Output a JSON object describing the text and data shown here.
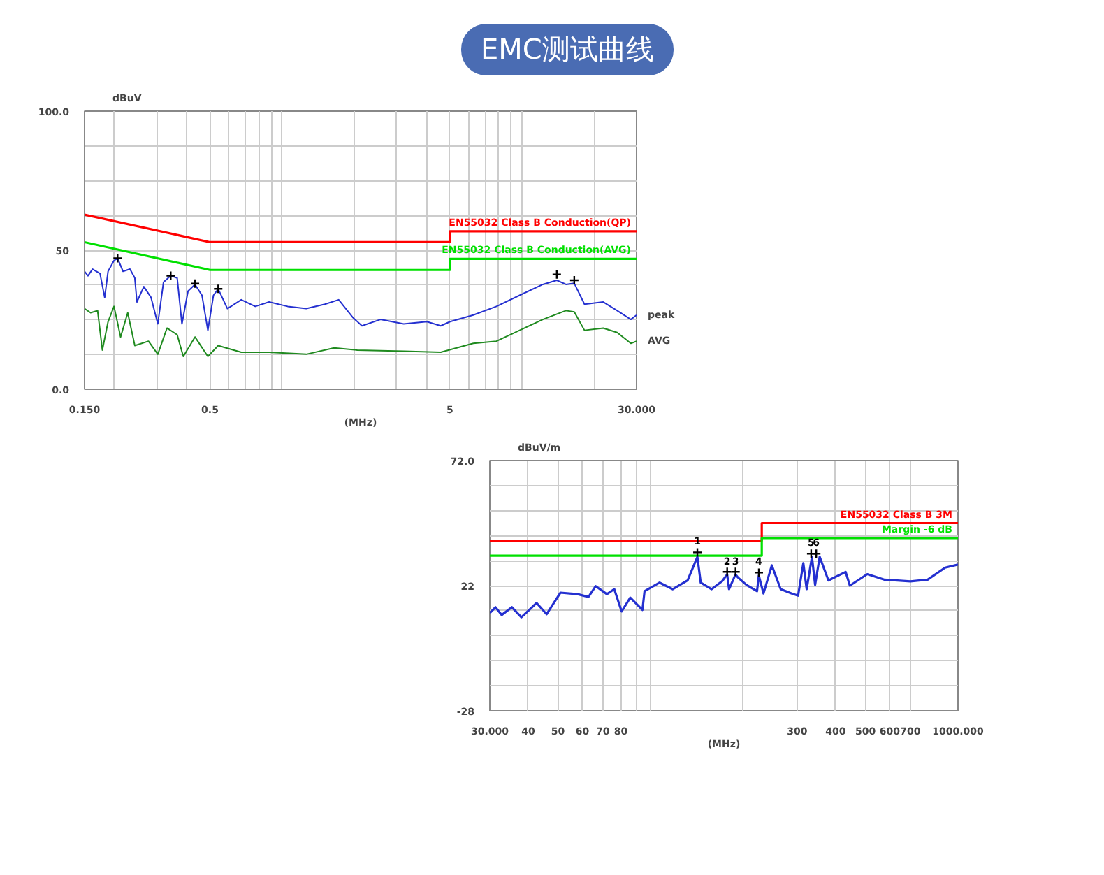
{
  "chart_data": [
    {
      "type": "line",
      "title": "EMC测试曲线",
      "ylabel": "dBuV",
      "xlabel": "(MHz)",
      "log": "x",
      "grid": true,
      "xlim": [
        0.15,
        30
      ],
      "ylim": [
        0,
        100
      ],
      "xticks": [
        {
          "value": 0.15,
          "label": "0.150"
        },
        {
          "value": 0.2,
          "label": null
        },
        {
          "value": 0.3,
          "label": null
        },
        {
          "value": 0.4,
          "label": null
        },
        0.5,
        {
          "value": 0.6,
          "label": null
        },
        {
          "value": 0.7,
          "label": null
        },
        {
          "value": 0.8,
          "label": null
        },
        {
          "value": 0.9,
          "label": null
        },
        {
          "value": 1,
          "label": null
        },
        {
          "value": 2,
          "label": null
        },
        {
          "value": 3,
          "label": null
        },
        {
          "value": 4,
          "label": null
        },
        5,
        {
          "value": 6,
          "label": null
        },
        {
          "value": 7,
          "label": null
        },
        {
          "value": 8,
          "label": null
        },
        {
          "value": 9,
          "label": null
        },
        {
          "value": 10,
          "label": null
        },
        {
          "value": 20,
          "label": null
        },
        {
          "value": 30,
          "label": "30.000"
        }
      ],
      "yticks": [
        {
          "value": 0,
          "label": "0.0"
        },
        {
          "value": 12.5,
          "label": null
        },
        {
          "value": 25,
          "label": null
        },
        {
          "value": 37.5,
          "label": null
        },
        50,
        {
          "value": 62.5,
          "label": null
        },
        {
          "value": 75,
          "label": null
        },
        {
          "value": 87.5,
          "label": null
        },
        {
          "value": 100,
          "label": "100.0"
        }
      ],
      "series": [
        {
          "color": "#ff0000",
          "x": [
            0.15,
            0.5,
            5,
            5,
            30
          ],
          "values": [
            62.8,
            52.9,
            52.9,
            56.8,
            56.8
          ]
        },
        {
          "color": "#00e000",
          "x": [
            0.15,
            0.5,
            5,
            5,
            30
          ],
          "values": [
            52.9,
            42.9,
            42.9,
            46.9,
            46.9
          ]
        },
        {
          "name": "peak",
          "color": "#2430d0",
          "x": [
            0.15,
            0.155,
            0.162,
            0.174,
            0.182,
            0.188,
            0.199,
            0.206,
            0.217,
            0.232,
            0.243,
            0.248,
            0.265,
            0.284,
            0.303,
            0.32,
            0.343,
            0.365,
            0.382,
            0.405,
            0.433,
            0.463,
            0.49,
            0.517,
            0.541,
            0.591,
            0.675,
            0.772,
            0.882,
            1.054,
            1.26,
            1.506,
            1.72,
            1.966,
            2.15,
            2.568,
            3.209,
            4.009,
            4.58,
            5.009,
            6.26,
            7.82,
            9.77,
            12.2,
            13.95,
            15.24,
            16.5,
            18.2,
            21.8,
            24.9,
            28.4,
            30
          ],
          "values": [
            42.4,
            40.8,
            43.2,
            41.6,
            33.0,
            42.4,
            46.3,
            47.1,
            42.4,
            43.2,
            40.0,
            31.4,
            36.9,
            33.0,
            23.5,
            38.5,
            40.8,
            40.0,
            23.5,
            35.3,
            37.7,
            33.8,
            21.2,
            33.8,
            36.1,
            29.0,
            32.2,
            29.8,
            31.4,
            29.8,
            29.0,
            30.6,
            32.2,
            25.9,
            22.8,
            25.1,
            23.5,
            24.3,
            22.8,
            24.3,
            26.7,
            29.8,
            33.8,
            37.7,
            39.2,
            37.7,
            38.1,
            30.6,
            31.4,
            28.3,
            25.1,
            26.7
          ]
        },
        {
          "name": "AVG",
          "color": "#1f8a1f",
          "x": [
            0.15,
            0.159,
            0.17,
            0.178,
            0.188,
            0.199,
            0.212,
            0.227,
            0.243,
            0.277,
            0.303,
            0.331,
            0.365,
            0.387,
            0.433,
            0.49,
            0.541,
            0.675,
            0.882,
            1.26,
            1.646,
            2.056,
            3.209,
            4.58,
            6.26,
            7.82,
            9.77,
            12.2,
            15.24,
            16.5,
            18.2,
            21.8,
            24.9,
            28.4,
            30
          ],
          "values": [
            29.0,
            27.5,
            28.3,
            14.1,
            24.3,
            29.8,
            18.8,
            27.5,
            15.7,
            17.3,
            12.6,
            22.0,
            19.6,
            11.8,
            18.8,
            11.8,
            15.7,
            13.3,
            13.3,
            12.6,
            14.9,
            14.1,
            13.7,
            13.3,
            16.5,
            17.3,
            21.2,
            25.1,
            28.3,
            27.8,
            21.2,
            22.0,
            20.4,
            16.5,
            17.3
          ]
        },
        {
          "type": "scatter",
          "marker": "cross",
          "color": "#000000",
          "x": [
            0.206,
            0.343,
            0.433,
            0.541,
            13.95,
            16.5
          ],
          "values": [
            47.1,
            40.8,
            38.0,
            36.1,
            41.3,
            39.2
          ]
        }
      ],
      "annotations": [
        "EN55032 Class B Conduction(QP)",
        "EN55032 Class B Conduction(AVG)"
      ]
    },
    {
      "type": "line",
      "ylabel": "dBuV/m",
      "xlabel": "(MHz)",
      "log": "x",
      "grid": true,
      "xlim": [
        30,
        1000
      ],
      "ylim": [
        -28,
        72
      ],
      "xticks": [
        {
          "value": 30,
          "label": "30.000"
        },
        40,
        50,
        60,
        70,
        80,
        {
          "value": 90,
          "label": null
        },
        {
          "value": 100,
          "label": null
        },
        {
          "value": 200,
          "label": null
        },
        300,
        400,
        500,
        600,
        700,
        {
          "value": 1000,
          "label": "1000.000"
        }
      ],
      "yticks": [
        {
          "value": -28,
          "label": "-28"
        },
        {
          "value": -18,
          "label": null
        },
        {
          "value": -8,
          "label": null
        },
        {
          "value": 2,
          "label": null
        },
        {
          "value": 12,
          "label": null
        },
        22,
        {
          "value": 32,
          "label": null
        },
        {
          "value": 42,
          "label": null
        },
        {
          "value": 52,
          "label": null
        },
        {
          "value": 62,
          "label": null
        },
        {
          "value": 72,
          "label": "72.0"
        }
      ],
      "series": [
        {
          "color": "#ff0000",
          "x": [
            30,
            230,
            230,
            1000
          ],
          "values": [
            40,
            40,
            47,
            47
          ]
        },
        {
          "color": "#00e000",
          "x": [
            30,
            230,
            230,
            1000
          ],
          "values": [
            34,
            34,
            41,
            41
          ]
        },
        {
          "color": "#2430d0",
          "x": [
            30,
            31.3,
            32.8,
            35.4,
            38.0,
            42.6,
            45.9,
            50.9,
            57.9,
            62.8,
            66.3,
            72.1,
            76.2,
            80.5,
            85.9,
            94.1,
            95.6,
            107,
            118,
            132,
            142,
            145.6,
            158,
            171,
            177.5,
            180,
            189,
            192,
            205,
            222,
            225,
            233,
            248,
            265,
            287,
            302,
            314,
            322,
            335,
            343,
            355,
            379,
            431,
            445,
            507,
            577,
            700,
            797,
            908,
            1000
          ],
          "values": [
            11.1,
            13.4,
            10.3,
            13.4,
            9.4,
            15.1,
            10.6,
            19.2,
            18.6,
            17.5,
            21.8,
            18.6,
            20.6,
            11.7,
            17.2,
            12.3,
            19.8,
            23.2,
            20.6,
            24.1,
            33.5,
            23.2,
            20.6,
            23.8,
            26.5,
            20.6,
            26.5,
            25.4,
            22.3,
            19.8,
            26.0,
            18.9,
            30.1,
            20.6,
            18.9,
            18.0,
            31.0,
            20.6,
            33.5,
            22.3,
            33.5,
            24.1,
            27.5,
            22.0,
            26.6,
            24.4,
            23.7,
            24.4,
            29.2,
            30.4
          ]
        },
        {
          "type": "scatter",
          "marker": "cross",
          "color": "#000000",
          "x": [
            142,
            177.5,
            189,
            225,
            333,
            346
          ],
          "values": [
            35.3,
            27.5,
            27.5,
            27.2,
            34.8,
            34.8
          ]
        }
      ],
      "annotations": [
        "EN55032 Class B 3M",
        "Margin -6 dB",
        {
          "text": "1",
          "x": 142,
          "y": 38.0
        },
        {
          "text": "2",
          "x": 177.5,
          "y": 29.8
        },
        {
          "text": "3",
          "x": 189,
          "y": 29.8
        },
        {
          "text": "4",
          "x": 225,
          "y": 29.8
        },
        {
          "text": "5",
          "x": 333,
          "y": 37.5
        },
        {
          "text": "6",
          "x": 346,
          "y": 37.5
        }
      ]
    }
  ]
}
